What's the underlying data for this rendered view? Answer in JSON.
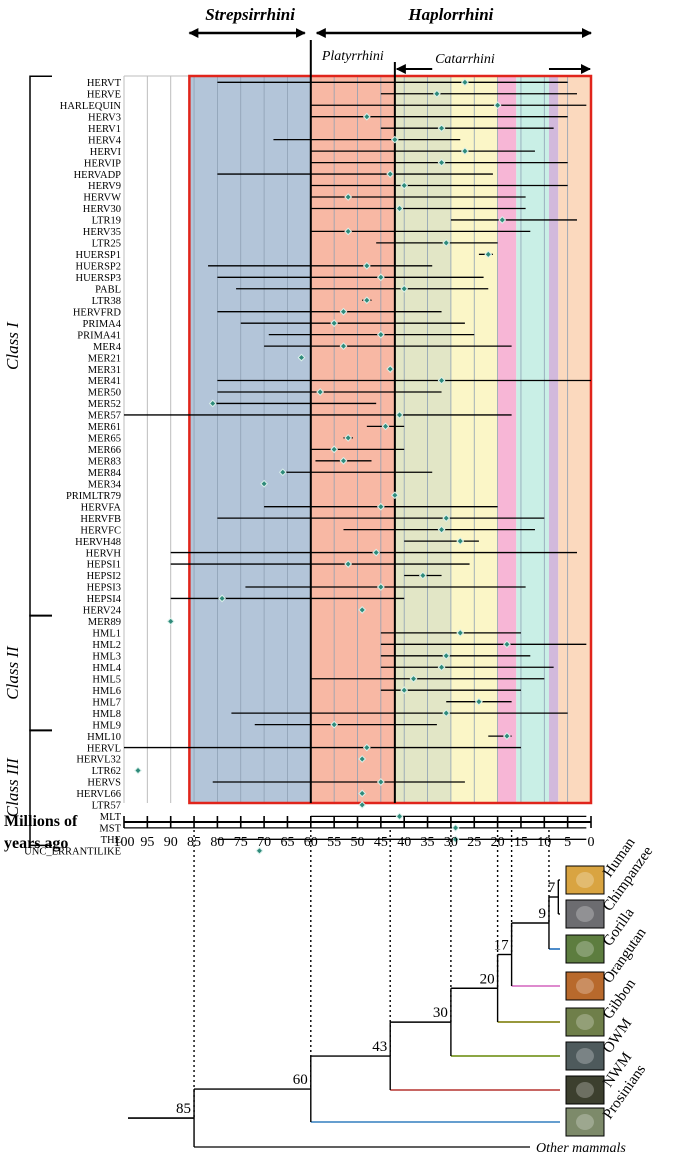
{
  "chart_data": {
    "type": "range-dot",
    "title": "",
    "xlabel": "Millions of years ago",
    "x_axis": {
      "min": 0,
      "max": 100,
      "reversed": true,
      "ticks": [
        100,
        95,
        90,
        85,
        80,
        75,
        70,
        65,
        60,
        55,
        50,
        45,
        40,
        35,
        30,
        25,
        20,
        15,
        10,
        5,
        0
      ],
      "label_line1": "Millions of",
      "label_line2": "years ago"
    },
    "clades": [
      {
        "name": "Strepsirrhini",
        "from": 86,
        "to": 60
      },
      {
        "name": "Haplorrhini",
        "from": 60,
        "to": 0
      },
      {
        "name": "Platyrrhini",
        "from": 60,
        "to": 42
      },
      {
        "name": "Catarrhini",
        "from": 42,
        "to": 0
      }
    ],
    "bands": [
      {
        "name": "Strepsirrhini",
        "from": 86,
        "to": 60,
        "color": "#B3C5D9"
      },
      {
        "name": "NWM split",
        "from": 60,
        "to": 42,
        "color": "#F8B8A4"
      },
      {
        "name": "OWM split",
        "from": 42,
        "to": 30,
        "color": "#E2E6C6"
      },
      {
        "name": "Gibbon split",
        "from": 30,
        "to": 20,
        "color": "#FBF6C7"
      },
      {
        "name": "Orangutan split",
        "from": 20,
        "to": 16,
        "color": "#F7B6D6"
      },
      {
        "name": "Gorilla split",
        "from": 16,
        "to": 9,
        "color": "#C9EFE6"
      },
      {
        "name": "Chimpanzee split",
        "from": 9,
        "to": 7,
        "color": "#D2B9DC"
      },
      {
        "name": "Human",
        "from": 7,
        "to": 0,
        "color": "#FBD9BE"
      }
    ],
    "classes": [
      {
        "name": "Class I",
        "first": "HERVT",
        "last": "HERV24"
      },
      {
        "name": "Class II",
        "first": "MER89",
        "last": "HML9"
      },
      {
        "name": "Class III",
        "first": "HML10",
        "last": "THE"
      }
    ],
    "families": [
      {
        "name": "HERVT",
        "age": 27,
        "min": 5,
        "max": 80
      },
      {
        "name": "HERVE",
        "age": 33,
        "min": 3,
        "max": 45
      },
      {
        "name": "HARLEQUIN",
        "age": 20,
        "min": 1,
        "max": 60
      },
      {
        "name": "HERV3",
        "age": 48,
        "min": 5,
        "max": 60
      },
      {
        "name": "HERV1",
        "age": 32,
        "min": 8,
        "max": 45
      },
      {
        "name": "HERV4",
        "age": 42,
        "min": 28,
        "max": 68
      },
      {
        "name": "HERVI",
        "age": 27,
        "min": 12,
        "max": 60
      },
      {
        "name": "HERVIP",
        "age": 32,
        "min": 5,
        "max": 60
      },
      {
        "name": "HERVADP",
        "age": 43,
        "min": 21,
        "max": 80
      },
      {
        "name": "HERV9",
        "age": 40,
        "min": 5,
        "max": 60
      },
      {
        "name": "HERVW",
        "age": 52,
        "min": 14,
        "max": 60
      },
      {
        "name": "HERV30",
        "age": 41,
        "min": 14,
        "max": 60
      },
      {
        "name": "LTR19",
        "age": 19,
        "min": 3,
        "max": 30
      },
      {
        "name": "HERV35",
        "age": 52,
        "min": 13,
        "max": 60
      },
      {
        "name": "LTR25",
        "age": 31,
        "min": 20,
        "max": 46
      },
      {
        "name": "HUERSP1",
        "age": 22,
        "min": 21,
        "max": 24
      },
      {
        "name": "HUERSP2",
        "age": 48,
        "min": 34,
        "max": 82
      },
      {
        "name": "HUERSP3",
        "age": 45,
        "min": 23,
        "max": 80
      },
      {
        "name": "PABL",
        "age": 40,
        "min": 22,
        "max": 76
      },
      {
        "name": "LTR38",
        "age": 48,
        "min": 47,
        "max": 49
      },
      {
        "name": "HERVFRD",
        "age": 53,
        "min": 32,
        "max": 80
      },
      {
        "name": "PRIMA4",
        "age": 55,
        "min": 27,
        "max": 75
      },
      {
        "name": "PRIMA41",
        "age": 45,
        "min": 25,
        "max": 69
      },
      {
        "name": "MER4",
        "age": 53,
        "min": 17,
        "max": 70
      },
      {
        "name": "MER21",
        "age": 62,
        "min": 61.5,
        "max": 62.5
      },
      {
        "name": "MER31",
        "age": 43,
        "min": 42.5,
        "max": 43.5
      },
      {
        "name": "MER41",
        "age": 32,
        "min": 0,
        "max": 80
      },
      {
        "name": "MER50",
        "age": 58,
        "min": 32,
        "max": 80
      },
      {
        "name": "MER52",
        "age": 81,
        "min": 46,
        "max": 81
      },
      {
        "name": "MER57",
        "age": 41,
        "min": 17,
        "max": 100
      },
      {
        "name": "MER61",
        "age": 44,
        "min": 40,
        "max": 48
      },
      {
        "name": "MER65",
        "age": 52,
        "min": 51,
        "max": 53
      },
      {
        "name": "MER66",
        "age": 55,
        "min": 40,
        "max": 60
      },
      {
        "name": "MER83",
        "age": 53,
        "min": 47,
        "max": 59
      },
      {
        "name": "MER84",
        "age": 66,
        "min": 34,
        "max": 66
      },
      {
        "name": "MER34",
        "age": 70,
        "min": 69.5,
        "max": 70.5
      },
      {
        "name": "PRIMLTR79",
        "age": 42,
        "min": 41.5,
        "max": 42.5
      },
      {
        "name": "HERVFA",
        "age": 45,
        "min": 20,
        "max": 70
      },
      {
        "name": "HERVFB",
        "age": 31,
        "min": 10,
        "max": 80
      },
      {
        "name": "HERVFC",
        "age": 32,
        "min": 12,
        "max": 53
      },
      {
        "name": "HERVH48",
        "age": 28,
        "min": 24,
        "max": 40
      },
      {
        "name": "HERVH",
        "age": 46,
        "min": 3,
        "max": 90
      },
      {
        "name": "HEPSI1",
        "age": 52,
        "min": 26,
        "max": 90
      },
      {
        "name": "HEPSI2",
        "age": 36,
        "min": 32,
        "max": 40
      },
      {
        "name": "HEPSI3",
        "age": 45,
        "min": 14,
        "max": 74
      },
      {
        "name": "HEPSI4",
        "age": 79,
        "min": 40,
        "max": 90
      },
      {
        "name": "HERV24",
        "age": 49,
        "min": 48.5,
        "max": 49.5
      },
      {
        "name": "MER89",
        "age": 90,
        "min": 89.5,
        "max": 90.5
      },
      {
        "name": "HML1",
        "age": 28,
        "min": 15,
        "max": 45
      },
      {
        "name": "HML2",
        "age": 18,
        "min": 1,
        "max": 45
      },
      {
        "name": "HML3",
        "age": 31,
        "min": 13,
        "max": 45
      },
      {
        "name": "HML4",
        "age": 32,
        "min": 8,
        "max": 45
      },
      {
        "name": "HML5",
        "age": 38,
        "min": 10,
        "max": 60
      },
      {
        "name": "HML6",
        "age": 40,
        "min": 15,
        "max": 45
      },
      {
        "name": "HML7",
        "age": 24,
        "min": 17,
        "max": 31
      },
      {
        "name": "HML8",
        "age": 31,
        "min": 5,
        "max": 77
      },
      {
        "name": "HML9",
        "age": 55,
        "min": 33,
        "max": 72
      },
      {
        "name": "HML10",
        "age": 18,
        "min": 17,
        "max": 22
      },
      {
        "name": "HERVL",
        "age": 48,
        "min": 15,
        "max": 100
      },
      {
        "name": "HERVL32",
        "age": 49,
        "min": 48.5,
        "max": 49.5
      },
      {
        "name": "LTR62",
        "age": 97,
        "min": 96.5,
        "max": 97.5
      },
      {
        "name": "HERVS",
        "age": 45,
        "min": 27,
        "max": 81
      },
      {
        "name": "HERVL66",
        "age": 49,
        "min": 48.5,
        "max": 49.5
      },
      {
        "name": "LTR57",
        "age": 49,
        "min": 48.5,
        "max": 49.5
      },
      {
        "name": "MLT",
        "age": 41,
        "min": 1,
        "max": 60
      },
      {
        "name": "MST",
        "age": 29,
        "min": 1,
        "max": 100
      },
      {
        "name": "THE",
        "age": 29,
        "min": 1,
        "max": 80
      },
      {
        "name": "UNC_ERRANTILIKE",
        "age": 71,
        "min": 70.5,
        "max": 71.5
      }
    ],
    "tree": {
      "nodes": [
        {
          "age": 85,
          "label": "85"
        },
        {
          "age": 60,
          "label": "60"
        },
        {
          "age": 43,
          "label": "43"
        },
        {
          "age": 30,
          "label": "30"
        },
        {
          "age": 20,
          "label": "20"
        },
        {
          "age": 17,
          "label": "17"
        },
        {
          "age": 9,
          "label": "9"
        },
        {
          "age": 7,
          "label": "7"
        }
      ],
      "tips": [
        {
          "name": "Human",
          "color": "#000000",
          "has_photo": true
        },
        {
          "name": "Chimpanzee",
          "color": "#000000",
          "has_photo": true
        },
        {
          "name": "Gorilla",
          "color": "#3a7fc4",
          "has_photo": true
        },
        {
          "name": "Orangutan",
          "color": "#d97ac7",
          "has_photo": true
        },
        {
          "name": "Gibbon",
          "color": "#8a8a20",
          "has_photo": true
        },
        {
          "name": "OWM",
          "color": "#7c9a2a",
          "has_photo": true
        },
        {
          "name": "NWM",
          "color": "#c0504d",
          "has_photo": true
        },
        {
          "name": "Prosinians",
          "color": "#4f90c8",
          "has_photo": true
        },
        {
          "name": "Other mammals",
          "color": "#000000",
          "has_photo": false
        }
      ]
    }
  }
}
